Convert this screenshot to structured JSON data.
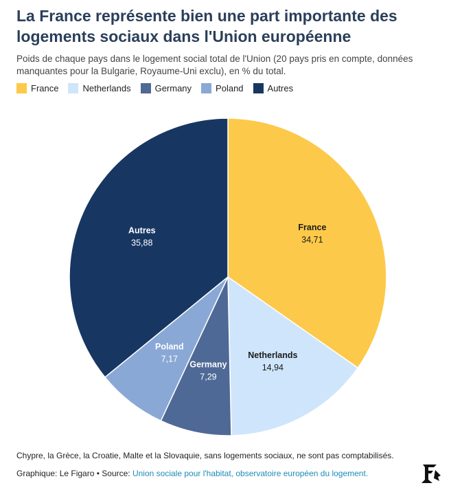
{
  "title": "La France représente bien une part importante des logements sociaux dans l'Union européenne",
  "subtitle": "Poids de chaque pays dans le logement social total de l'Union (20 pays pris en compte, données manquantes pour la Bulgarie, Royaume-Uni exclu), en % du total.",
  "footer": {
    "note": "Chypre, la Grèce, la Croatie, Malte et la Slovaquie, sans logements sociaux, ne sont pas comptabilisés.",
    "credit_prefix": "Graphique: Le Figaro • Source: ",
    "source_link": "Union sociale pour l'habitat, observatoire européen du logement."
  },
  "chart_data": {
    "type": "pie",
    "legend_position": "top-left",
    "slices": [
      {
        "name": "France",
        "value": 34.71,
        "label": "34,71",
        "color": "#fdc94a",
        "text_color": "#1a1a1a"
      },
      {
        "name": "Netherlands",
        "value": 14.94,
        "label": "14,94",
        "color": "#cfe5fb",
        "text_color": "#1a1a1a"
      },
      {
        "name": "Germany",
        "value": 7.29,
        "label": "7,29",
        "color": "#4f6996",
        "text_color": "#ffffff"
      },
      {
        "name": "Poland",
        "value": 7.17,
        "label": "7,17",
        "color": "#8aa8d6",
        "text_color": "#ffffff"
      },
      {
        "name": "Autres",
        "value": 35.88,
        "label": "35,88",
        "color": "#173762",
        "text_color": "#ffffff"
      }
    ]
  }
}
